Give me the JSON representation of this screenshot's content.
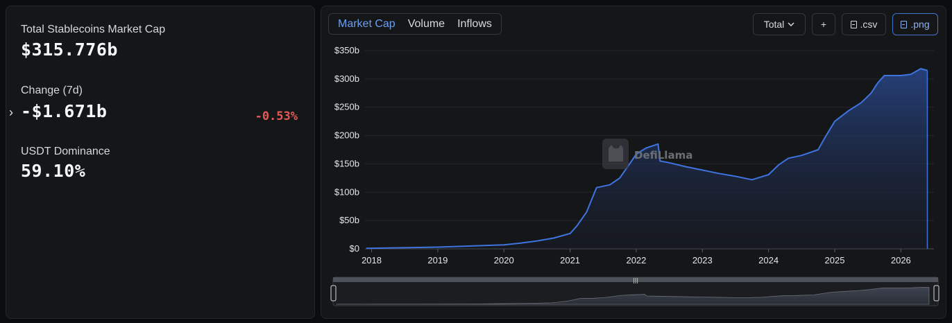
{
  "stats": {
    "total_label": "Total Stablecoins Market Cap",
    "total_value": "$315.776b",
    "change_label": "Change (7d)",
    "change_value": "-$1.671b",
    "change_pct": "-0.53%",
    "dominance_label": "USDT Dominance",
    "dominance_value": "59.10%"
  },
  "tabs": [
    "Market Cap",
    "Volume",
    "Inflows"
  ],
  "active_tab": "Market Cap",
  "controls": {
    "total_select": "Total",
    "add_label": "+",
    "csv_label": ".csv",
    "png_label": ".png"
  },
  "watermark": "DefiLlama",
  "colors": {
    "line": "#3f74e0",
    "fill_top": "#26427f",
    "negative": "#e25b57",
    "accent": "#6c9ff1"
  },
  "chart_data": {
    "type": "area",
    "title": "",
    "xlabel": "",
    "ylabel": "",
    "ylim": [
      0,
      350
    ],
    "xlim": [
      2017.9,
      2026.5
    ],
    "y_ticks": [
      "$0",
      "$50b",
      "$100b",
      "$150b",
      "$200b",
      "$250b",
      "$300b",
      "$350b"
    ],
    "x_ticks": [
      "2018",
      "2019",
      "2020",
      "2021",
      "2022",
      "2023",
      "2024",
      "2025",
      "2026"
    ],
    "grid": true,
    "series": [
      {
        "x": [
          2017.92,
          2018.5,
          2019.0,
          2019.5,
          2020.0,
          2020.25,
          2020.5,
          2020.75,
          2021.0,
          2021.1,
          2021.25,
          2021.4,
          2021.6,
          2021.75,
          2021.9,
          2022.0,
          2022.15,
          2022.33,
          2022.36,
          2022.5,
          2022.75,
          2023.0,
          2023.25,
          2023.5,
          2023.75,
          2024.0,
          2024.15,
          2024.3,
          2024.5,
          2024.75,
          2024.85,
          2025.0,
          2025.2,
          2025.4,
          2025.55,
          2025.65,
          2025.75,
          2025.85,
          2026.0,
          2026.15,
          2026.3,
          2026.4
        ],
        "values": [
          1,
          2,
          3,
          5,
          7,
          10,
          14,
          19,
          27,
          40,
          65,
          108,
          113,
          125,
          150,
          167,
          178,
          185,
          155,
          152,
          145,
          139,
          133,
          128,
          122,
          131,
          148,
          160,
          165,
          175,
          196,
          225,
          243,
          258,
          275,
          293,
          306,
          306,
          306,
          308,
          318,
          315
        ]
      }
    ]
  }
}
